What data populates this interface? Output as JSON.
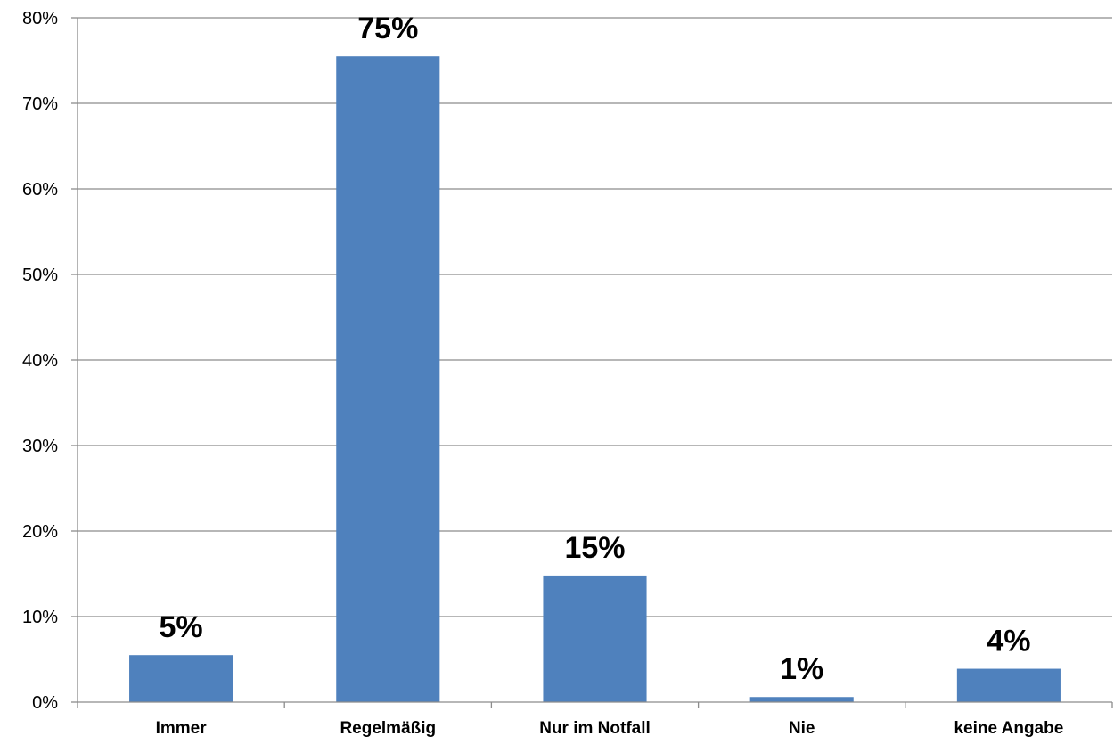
{
  "chart_data": {
    "type": "bar",
    "categories": [
      "Immer",
      "Regelmäßig",
      "Nur im Notfall",
      "Nie",
      "keine Angabe"
    ],
    "series": [
      {
        "values": [
          5.5,
          75.5,
          14.8,
          0.6,
          3.9
        ]
      }
    ],
    "data_labels": [
      "5%",
      "75%",
      "15%",
      "1%",
      "4%"
    ],
    "title": "",
    "xlabel": "",
    "ylabel": "",
    "ylim": [
      0,
      80
    ],
    "yticks": [
      0,
      10,
      20,
      30,
      40,
      50,
      60,
      70,
      80
    ],
    "ytick_labels": [
      "0%",
      "10%",
      "20%",
      "30%",
      "40%",
      "50%",
      "60%",
      "70%",
      "80%"
    ],
    "grid": true,
    "legend": "none",
    "colors": {
      "bar": "#4f81bd",
      "grid": "#8c8c8c",
      "axis": "#8c8c8c"
    }
  }
}
